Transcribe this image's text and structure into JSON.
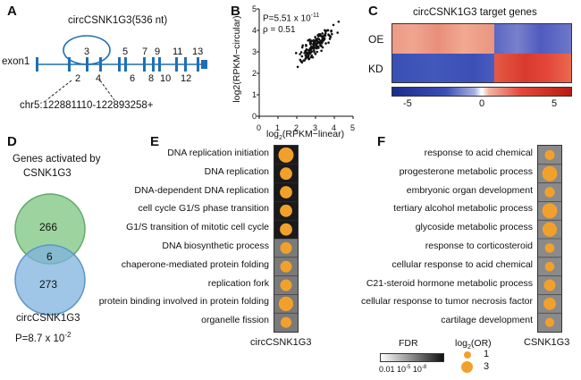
{
  "panels": {
    "a": "A",
    "b": "B",
    "c": "C",
    "d": "D",
    "e": "E",
    "f": "F"
  },
  "panel_a": {
    "circ_label": "circCSNK1G3(536 nt)",
    "exon1": "exon1",
    "exons_top": [
      "3",
      "5",
      "7",
      "9",
      "11",
      "13"
    ],
    "exons_bottom": [
      "2",
      "4",
      "6",
      "8",
      "10",
      "12"
    ],
    "coords": "chr5:122881110-122893258+",
    "accent": "#1f6fb4"
  },
  "panel_b": {
    "p_text": "P=5.51 x 10",
    "p_exp": "-11",
    "rho_text": "ρ = 0.51",
    "xlabel_pre": "log",
    "xlabel_sub": "2",
    "xlabel_post": "(RPKM−linear)",
    "ylabel": "log2(RPKM−circular)",
    "xticks": [
      "0",
      "1",
      "2",
      "3",
      "4",
      "5"
    ],
    "yticks": [
      "0",
      "1",
      "2",
      "3",
      "4",
      "5"
    ]
  },
  "panel_c": {
    "title": "circCSNK1G3 target genes",
    "rows": [
      "OE",
      "KD"
    ],
    "scale": [
      "-5",
      "0",
      "5"
    ],
    "colors": {
      "red": "#e4473a",
      "salmon": "#f0a28f",
      "blue": "#3b4fb6"
    }
  },
  "panel_d": {
    "title_line1": "Genes activated by",
    "title_line2": "CSNK1G3",
    "top_count": "266",
    "overlap": "6",
    "bottom_count": "273",
    "bottom_label": "circCSNK1G3",
    "p_text": "P=8.7 x 10",
    "p_exp": "-2",
    "colors": {
      "green": "#7cc47f",
      "blue": "#7fb1df"
    }
  },
  "panel_e": {
    "terms": [
      "DNA replication initiation",
      "DNA replication",
      "DNA-dependent DNA replication",
      "cell cycle G1/S phase transition",
      "G1/S transition of mitotic cell cycle",
      "DNA biosynthetic process",
      "chaperone-mediated protein folding",
      "replication fork",
      "protein binding involved in protein folding",
      "organelle fission"
    ],
    "xlabel": "circCSNK1G3"
  },
  "panel_f": {
    "terms": [
      "response to acid chemical",
      "progesterone metabolic process",
      "embryonic organ development",
      "tertiary alcohol metabolic process",
      "glycoside metabolic process",
      "response to corticosteroid",
      "cellular response to acid chemical",
      "C21-steroid hormone metabolic process",
      "cellular response to tumor necrosis factor",
      "cartilage development"
    ],
    "xlabel": "CSNK1G3"
  },
  "legend": {
    "fdr_title": "FDR",
    "fdr_ticks": [
      "0.01",
      "10",
      "10"
    ],
    "fdr_exps": [
      "-5",
      "-8"
    ],
    "or_title_pre": "log",
    "or_title_sub": "2",
    "or_title_post": "(OR)",
    "size_small": "1",
    "size_large": "3"
  },
  "chart_data": [
    {
      "type": "scatter",
      "panel": "B",
      "xlabel": "log2(RPKM−linear)",
      "ylabel": "log2(RPKM−circular)",
      "xlim": [
        0,
        5
      ],
      "ylim": [
        0,
        5
      ],
      "annotations": [
        "P=5.51 x 10^-11",
        "ρ = 0.51"
      ],
      "points_description": "cloud of ~150 genes centered near x≈3.1, y≈3.4; range x 2.0–3.9, y 2.2–4.2"
    },
    {
      "type": "heatmap",
      "panel": "C",
      "title": "circCSNK1G3 target genes",
      "rows": [
        "OE",
        "KD"
      ],
      "colorbar": [
        -5,
        5
      ],
      "pattern": "OE: up (red) in left ~57% of genes, down (blue) in right ~43%; KD: opposite"
    },
    {
      "type": "dot",
      "panel": "E",
      "xlabel": "circCSNK1G3",
      "fdr_dark_rows": 5,
      "categories": [
        "DNA replication initiation",
        "DNA replication",
        "DNA-dependent DNA replication",
        "cell cycle G1/S phase transition",
        "G1/S transition of mitotic cell cycle",
        "DNA biosynthetic process",
        "chaperone-mediated protein folding",
        "replication fork",
        "protein binding involved in protein folding",
        "organelle fission"
      ],
      "log2_or": [
        3,
        2.2,
        2.2,
        2.2,
        2.2,
        2,
        2,
        2,
        2.8,
        1.8
      ]
    },
    {
      "type": "dot",
      "panel": "F",
      "xlabel": "CSNK1G3",
      "categories": [
        "response to acid chemical",
        "progesterone metabolic process",
        "embryonic organ development",
        "tertiary alcohol metabolic process",
        "glycoside metabolic process",
        "response to corticosteroid",
        "cellular response to acid chemical",
        "C21-steroid hormone metabolic process",
        "cellular response to tumor necrosis factor",
        "cartilage development"
      ],
      "log2_or": [
        1.5,
        3,
        1.6,
        3,
        2.8,
        1.4,
        1.4,
        2,
        2.2,
        1.3
      ]
    }
  ]
}
